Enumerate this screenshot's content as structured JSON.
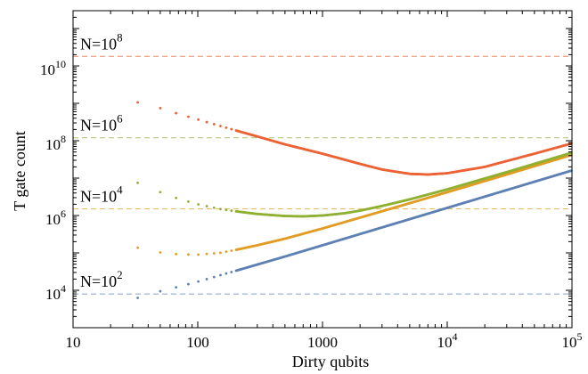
{
  "chart_data": {
    "type": "scatter",
    "title": "",
    "xlabel": "Dirty qubits",
    "ylabel": "T gate count",
    "xscale": "log",
    "yscale": "log",
    "xlim": [
      10,
      100000
    ],
    "ylim": [
      1000,
      300000000000
    ],
    "grid": false,
    "legend": "none",
    "x_ticks": [
      {
        "value": 10,
        "base": "10",
        "exp": ""
      },
      {
        "value": 100,
        "base": "100",
        "exp": ""
      },
      {
        "value": 1000,
        "base": "1000",
        "exp": ""
      },
      {
        "value": 10000,
        "base": "10",
        "exp": "4"
      },
      {
        "value": 100000,
        "base": "10",
        "exp": "5"
      }
    ],
    "y_ticks": [
      {
        "value": 10000,
        "base": "10",
        "exp": "4"
      },
      {
        "value": 1000000,
        "base": "10",
        "exp": "6"
      },
      {
        "value": 100000000,
        "base": "10",
        "exp": "8"
      },
      {
        "value": 10000000000,
        "base": "10",
        "exp": "10"
      }
    ],
    "series": [
      {
        "label_base": "N=10",
        "label_exp": "2",
        "color": "#5e81b5",
        "reference_line": 8000,
        "points": [
          [
            17,
            2800
          ],
          [
            34,
            6500
          ],
          [
            52,
            9800
          ],
          [
            70,
            12500
          ],
          [
            100,
            17000
          ],
          [
            200,
            33000
          ],
          [
            500,
            80000
          ],
          [
            1000,
            160000
          ],
          [
            3000,
            480000
          ],
          [
            10000,
            1600000
          ],
          [
            30000,
            4800000
          ],
          [
            100000,
            16000000
          ]
        ]
      },
      {
        "label_base": "N=10",
        "label_exp": "4",
        "color": "#e19c24",
        "reference_line": 1500000,
        "points": [
          [
            18,
            250000
          ],
          [
            35,
            130000
          ],
          [
            52,
            100000
          ],
          [
            70,
            92000
          ],
          [
            100,
            90000
          ],
          [
            150,
            100000
          ],
          [
            200,
            120000
          ],
          [
            300,
            160000
          ],
          [
            500,
            240000
          ],
          [
            1000,
            450000
          ],
          [
            3000,
            1300000
          ],
          [
            10000,
            4200000
          ],
          [
            30000,
            12500000
          ],
          [
            100000,
            42000000
          ]
        ]
      },
      {
        "label_base": "N=10",
        "label_exp": "6",
        "color": "#8fb032",
        "reference_line": 120000000,
        "points": [
          [
            18,
            15000000
          ],
          [
            35,
            7000000
          ],
          [
            52,
            4000000
          ],
          [
            70,
            2800000
          ],
          [
            100,
            2000000
          ],
          [
            150,
            1500000
          ],
          [
            200,
            1300000
          ],
          [
            300,
            1100000
          ],
          [
            500,
            970000
          ],
          [
            700,
            950000
          ],
          [
            1000,
            1000000
          ],
          [
            1500,
            1150000
          ],
          [
            2000,
            1350000
          ],
          [
            3000,
            1800000
          ],
          [
            5000,
            2700000
          ],
          [
            10000,
            5000000
          ],
          [
            30000,
            14500000
          ],
          [
            100000,
            48000000
          ]
        ]
      },
      {
        "label_base": "N=10",
        "label_exp": "8",
        "color": "#eb6235",
        "reference_line": 18000000000,
        "points": [
          [
            18,
            1900000000
          ],
          [
            35,
            1000000000
          ],
          [
            52,
            720000000
          ],
          [
            70,
            520000000
          ],
          [
            100,
            370000000
          ],
          [
            150,
            250000000
          ],
          [
            200,
            190000000
          ],
          [
            300,
            130000000
          ],
          [
            500,
            80000000
          ],
          [
            1000,
            45000000
          ],
          [
            2000,
            24000000
          ],
          [
            3000,
            17000000
          ],
          [
            5000,
            13000000
          ],
          [
            7000,
            12500000
          ],
          [
            10000,
            13500000
          ],
          [
            20000,
            20000000
          ],
          [
            50000,
            45000000
          ],
          [
            100000,
            85000000
          ]
        ]
      }
    ]
  }
}
